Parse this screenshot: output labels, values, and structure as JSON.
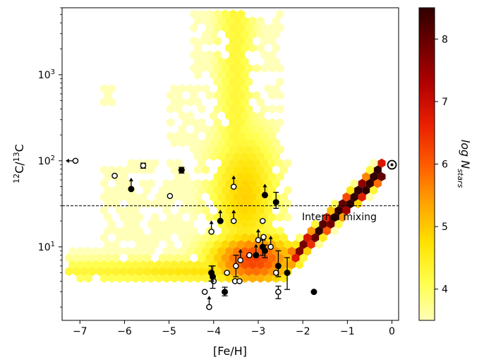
{
  "chart_data": {
    "type": "hexbin",
    "title": "",
    "xlabel": "[Fe/H]",
    "ylabel": "12C/13C",
    "ylabel_parts": {
      "sup1": "12",
      "base1": "C",
      "slash": "/",
      "sup2": "13",
      "base2": "C"
    },
    "xlim": [
      -7.4,
      0.15
    ],
    "ylim": [
      1.4,
      6000
    ],
    "yscale": "log",
    "xticks": [
      -7,
      -6,
      -5,
      -4,
      -3,
      -2,
      -1,
      0
    ],
    "xtick_labels": [
      "−7",
      "−6",
      "−5",
      "−4",
      "−3",
      "−2",
      "−1",
      "0"
    ],
    "yticks": [
      10,
      100,
      1000
    ],
    "ytick_labels": {
      "base": [
        "10",
        "10",
        "10"
      ],
      "exp": [
        "1",
        "2",
        "3"
      ]
    },
    "colorbar": {
      "label_base": "log N",
      "label_sub": "stars",
      "range": [
        3.5,
        8.5
      ],
      "ticks": [
        4,
        5,
        6,
        7,
        8
      ],
      "tick_labels": [
        "4",
        "5",
        "6",
        "7",
        "8"
      ],
      "colormap": "hot_r",
      "colors": [
        "#ffffb8",
        "#ffff4d",
        "#ffe100",
        "#ffa000",
        "#ff5a00",
        "#e81e00",
        "#b00000",
        "#6f0000",
        "#300000"
      ]
    },
    "reference_line": {
      "y": 30,
      "label": "Internal mixing",
      "style": "dashed"
    },
    "solar_marker": {
      "x": 0.0,
      "y": 90,
      "symbol": "sun"
    },
    "observations": {
      "filled": [
        {
          "x": -5.85,
          "y": 47,
          "lower_limit": true
        },
        {
          "x": -4.72,
          "y": 78,
          "err_low": 6,
          "err_high": 6
        },
        {
          "x": -4.05,
          "y": 5,
          "err_low": 1,
          "err_high": 1
        },
        {
          "x": -4.02,
          "y": 4.5,
          "err_low": 1.2,
          "err_high": 1.5
        },
        {
          "x": -3.85,
          "y": 20,
          "lower_limit": true
        },
        {
          "x": -3.75,
          "y": 3,
          "err_low": 0.3,
          "err_high": 0.4
        },
        {
          "x": -2.85,
          "y": 40,
          "lower_limit": true
        },
        {
          "x": -2.6,
          "y": 33,
          "err_low": 5,
          "err_high": 10
        },
        {
          "x": -2.9,
          "y": 10,
          "err_low": 2,
          "err_high": 2
        },
        {
          "x": -3.05,
          "y": 8,
          "lower_limit": true
        },
        {
          "x": -2.85,
          "y": 9,
          "err_low": 1.5,
          "err_high": 1.5
        },
        {
          "x": -2.55,
          "y": 6,
          "err_low": 1.5,
          "err_high": 3
        },
        {
          "x": -2.35,
          "y": 5,
          "err_low": 1.8,
          "err_high": 2.5
        },
        {
          "x": -1.75,
          "y": 3
        }
      ],
      "open": [
        {
          "x": -7.1,
          "y": 100,
          "upper_limit_x": true
        },
        {
          "x": -6.22,
          "y": 67
        },
        {
          "x": -5.58,
          "y": 88,
          "err_low": 6,
          "err_high": 6
        },
        {
          "x": -4.98,
          "y": 39
        },
        {
          "x": -3.55,
          "y": 50,
          "lower_limit": true
        },
        {
          "x": -3.55,
          "y": 20,
          "lower_limit": true
        },
        {
          "x": -4.05,
          "y": 15,
          "lower_limit": true
        },
        {
          "x": -2.9,
          "y": 20
        },
        {
          "x": -2.88,
          "y": 13
        },
        {
          "x": -3.0,
          "y": 12,
          "lower_limit": true
        },
        {
          "x": -2.72,
          "y": 10,
          "lower_limit": true
        },
        {
          "x": -3.2,
          "y": 8
        },
        {
          "x": -3.4,
          "y": 7,
          "lower_limit": true
        },
        {
          "x": -3.5,
          "y": 6,
          "err_low": 1.5,
          "err_high": 2
        },
        {
          "x": -3.7,
          "y": 5
        },
        {
          "x": -3.52,
          "y": 4
        },
        {
          "x": -3.42,
          "y": 4
        },
        {
          "x": -4.0,
          "y": 4
        },
        {
          "x": -4.2,
          "y": 3
        },
        {
          "x": -4.1,
          "y": 2,
          "lower_limit": true
        },
        {
          "x": -2.6,
          "y": 5
        },
        {
          "x": -2.55,
          "y": 3,
          "err_low": 0.5,
          "err_high": 0.5
        }
      ]
    }
  }
}
